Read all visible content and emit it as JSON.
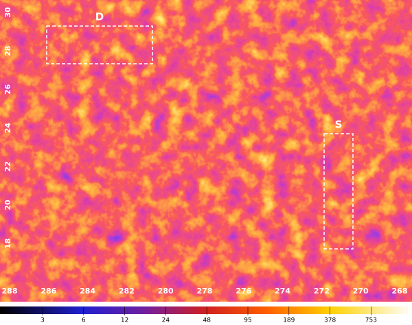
{
  "x_axis": {
    "ticks": [
      "288",
      "286",
      "284",
      "282",
      "280",
      "278",
      "276",
      "274",
      "272",
      "270",
      "268"
    ]
  },
  "y_axis": {
    "ticks": [
      "30",
      "28",
      "26",
      "24",
      "22",
      "20",
      "18"
    ]
  },
  "regions": [
    {
      "label": "D"
    },
    {
      "label": "S"
    }
  ],
  "colorbar": {
    "ticks": [
      "3",
      "6",
      "12",
      "24",
      "48",
      "95",
      "189",
      "378",
      "753"
    ]
  }
}
